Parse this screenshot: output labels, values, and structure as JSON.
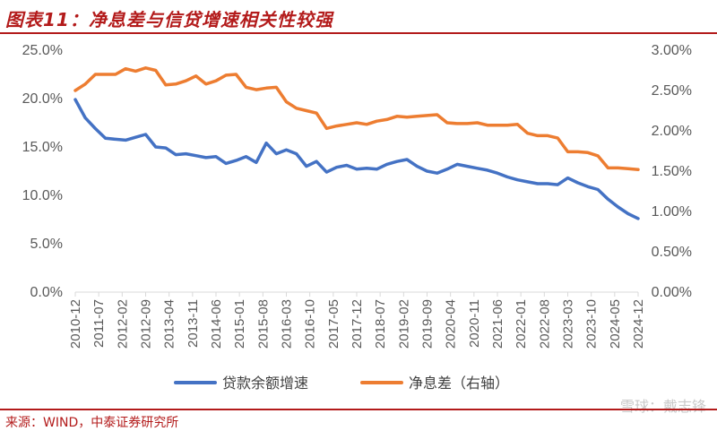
{
  "title": "图表11：净息差与信贷增速相关性较强",
  "source": "来源：WIND，中泰证券研究所",
  "watermark": "雪球：戴志锋",
  "colors": {
    "loan_growth": "#4472c4",
    "nim": "#ed7d31",
    "accent": "#b31b1b"
  },
  "chart_data": {
    "type": "line",
    "title": "图表11：净息差与信贷增速相关性较强",
    "x_tick_labels": [
      "2010-12",
      "2011-07",
      "2012-02",
      "2012-09",
      "2013-04",
      "2013-11",
      "2014-06",
      "2015-01",
      "2015-08",
      "2016-03",
      "2016-10",
      "2017-05",
      "2017-12",
      "2018-07",
      "2019-02",
      "2019-09",
      "2020-04",
      "2020-11",
      "2021-06",
      "2022-01",
      "2022-08",
      "2023-03",
      "2023-10",
      "2024-05",
      "2024-12"
    ],
    "left_axis": {
      "ylim": [
        0,
        25
      ],
      "ticks": [
        "0.0%",
        "5.0%",
        "10.0%",
        "15.0%",
        "20.0%",
        "25.0%"
      ]
    },
    "right_axis": {
      "ylim": [
        0,
        3
      ],
      "ticks": [
        "0.00%",
        "0.50%",
        "1.00%",
        "1.50%",
        "2.00%",
        "2.50%",
        "3.00%"
      ]
    },
    "grid": false,
    "legend_position": "bottom",
    "series": [
      {
        "name": "贷款余额增速",
        "axis": "left",
        "color": "#4472c4",
        "points": [
          [
            "2010-12",
            19.9
          ],
          [
            "2011-03",
            18.0
          ],
          [
            "2011-06",
            16.9
          ],
          [
            "2011-09",
            15.9
          ],
          [
            "2011-12",
            15.8
          ],
          [
            "2012-03",
            15.7
          ],
          [
            "2012-06",
            16.0
          ],
          [
            "2012-09",
            16.3
          ],
          [
            "2012-12",
            15.0
          ],
          [
            "2013-03",
            14.9
          ],
          [
            "2013-06",
            14.2
          ],
          [
            "2013-09",
            14.3
          ],
          [
            "2013-12",
            14.1
          ],
          [
            "2014-03",
            13.9
          ],
          [
            "2014-06",
            14.0
          ],
          [
            "2014-09",
            13.3
          ],
          [
            "2014-12",
            13.6
          ],
          [
            "2015-03",
            14.0
          ],
          [
            "2015-06",
            13.4
          ],
          [
            "2015-09",
            15.4
          ],
          [
            "2015-12",
            14.3
          ],
          [
            "2016-03",
            14.7
          ],
          [
            "2016-06",
            14.3
          ],
          [
            "2016-09",
            13.0
          ],
          [
            "2016-12",
            13.5
          ],
          [
            "2017-03",
            12.4
          ],
          [
            "2017-06",
            12.9
          ],
          [
            "2017-09",
            13.1
          ],
          [
            "2017-12",
            12.7
          ],
          [
            "2018-03",
            12.8
          ],
          [
            "2018-06",
            12.7
          ],
          [
            "2018-09",
            13.2
          ],
          [
            "2018-12",
            13.5
          ],
          [
            "2019-03",
            13.7
          ],
          [
            "2019-06",
            13.0
          ],
          [
            "2019-09",
            12.5
          ],
          [
            "2019-12",
            12.3
          ],
          [
            "2020-03",
            12.7
          ],
          [
            "2020-06",
            13.2
          ],
          [
            "2020-09",
            13.0
          ],
          [
            "2020-12",
            12.8
          ],
          [
            "2021-03",
            12.6
          ],
          [
            "2021-06",
            12.3
          ],
          [
            "2021-09",
            11.9
          ],
          [
            "2021-12",
            11.6
          ],
          [
            "2022-03",
            11.4
          ],
          [
            "2022-06",
            11.2
          ],
          [
            "2022-09",
            11.2
          ],
          [
            "2022-12",
            11.1
          ],
          [
            "2023-03",
            11.8
          ],
          [
            "2023-06",
            11.3
          ],
          [
            "2023-09",
            10.9
          ],
          [
            "2023-12",
            10.6
          ],
          [
            "2024-03",
            9.6
          ],
          [
            "2024-06",
            8.8
          ],
          [
            "2024-09",
            8.1
          ],
          [
            "2024-12",
            7.6
          ]
        ]
      },
      {
        "name": "净息差（右轴）",
        "axis": "right",
        "color": "#ed7d31",
        "points": [
          [
            "2010-12",
            2.5
          ],
          [
            "2011-03",
            2.58
          ],
          [
            "2011-06",
            2.7
          ],
          [
            "2011-09",
            2.7
          ],
          [
            "2011-12",
            2.7
          ],
          [
            "2012-03",
            2.77
          ],
          [
            "2012-06",
            2.74
          ],
          [
            "2012-09",
            2.78
          ],
          [
            "2012-12",
            2.75
          ],
          [
            "2013-03",
            2.57
          ],
          [
            "2013-06",
            2.58
          ],
          [
            "2013-09",
            2.62
          ],
          [
            "2013-12",
            2.68
          ],
          [
            "2014-03",
            2.58
          ],
          [
            "2014-06",
            2.62
          ],
          [
            "2014-09",
            2.69
          ],
          [
            "2014-12",
            2.7
          ],
          [
            "2015-03",
            2.54
          ],
          [
            "2015-06",
            2.51
          ],
          [
            "2015-09",
            2.53
          ],
          [
            "2015-12",
            2.54
          ],
          [
            "2016-03",
            2.36
          ],
          [
            "2016-06",
            2.28
          ],
          [
            "2016-09",
            2.25
          ],
          [
            "2016-12",
            2.22
          ],
          [
            "2017-03",
            2.03
          ],
          [
            "2017-06",
            2.06
          ],
          [
            "2017-09",
            2.08
          ],
          [
            "2017-12",
            2.1
          ],
          [
            "2018-03",
            2.08
          ],
          [
            "2018-06",
            2.12
          ],
          [
            "2018-09",
            2.14
          ],
          [
            "2018-12",
            2.18
          ],
          [
            "2019-03",
            2.17
          ],
          [
            "2019-06",
            2.18
          ],
          [
            "2019-09",
            2.19
          ],
          [
            "2019-12",
            2.2
          ],
          [
            "2020-03",
            2.1
          ],
          [
            "2020-06",
            2.09
          ],
          [
            "2020-09",
            2.09
          ],
          [
            "2020-12",
            2.1
          ],
          [
            "2021-03",
            2.07
          ],
          [
            "2021-06",
            2.07
          ],
          [
            "2021-09",
            2.07
          ],
          [
            "2021-12",
            2.08
          ],
          [
            "2022-03",
            1.97
          ],
          [
            "2022-06",
            1.94
          ],
          [
            "2022-09",
            1.94
          ],
          [
            "2022-12",
            1.91
          ],
          [
            "2023-03",
            1.74
          ],
          [
            "2023-06",
            1.74
          ],
          [
            "2023-09",
            1.73
          ],
          [
            "2023-12",
            1.69
          ],
          [
            "2024-03",
            1.54
          ],
          [
            "2024-06",
            1.54
          ],
          [
            "2024-09",
            1.53
          ],
          [
            "2024-12",
            1.52
          ]
        ]
      }
    ]
  }
}
